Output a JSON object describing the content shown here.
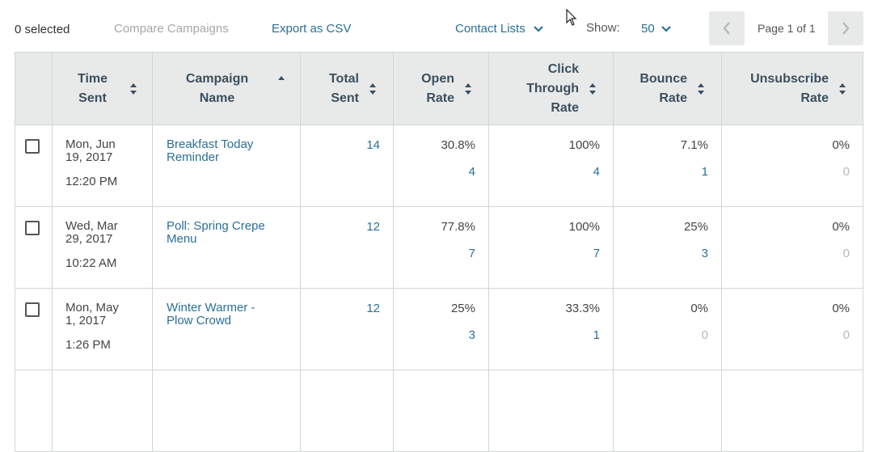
{
  "toolbar": {
    "selected_text": "0 selected",
    "compare_label": "Compare Campaigns",
    "export_label": "Export as CSV",
    "contact_lists_label": "Contact Lists",
    "show_label": "Show:",
    "show_value": "50",
    "page_text": "Page 1 of 1"
  },
  "columns": {
    "time_sent": [
      "Time",
      "Sent"
    ],
    "campaign_name": [
      "Campaign",
      "Name"
    ],
    "total_sent": [
      "Total",
      "Sent"
    ],
    "open_rate": [
      "Open",
      "Rate"
    ],
    "click_through_rate": [
      "Click",
      "Through",
      "Rate"
    ],
    "bounce_rate": [
      "Bounce",
      "Rate"
    ],
    "unsubscribe_rate": [
      "Unsubscribe",
      "Rate"
    ]
  },
  "rows": [
    {
      "date": [
        "Mon, Jun",
        "19, 2017"
      ],
      "time": "12:20 PM",
      "campaign": [
        "Breakfast Today",
        "Reminder"
      ],
      "total_sent": "14",
      "open_rate": "30.8%",
      "open_count": "4",
      "click_rate": "100%",
      "click_count": "4",
      "bounce_rate": "7.1%",
      "bounce_count": "1",
      "unsub_rate": "0%",
      "unsub_count": "0"
    },
    {
      "date": [
        "Wed, Mar",
        "29, 2017"
      ],
      "time": "10:22 AM",
      "campaign": [
        "Poll: Spring Crepe",
        "Menu"
      ],
      "total_sent": "12",
      "open_rate": "77.8%",
      "open_count": "7",
      "click_rate": "100%",
      "click_count": "7",
      "bounce_rate": "25%",
      "bounce_count": "3",
      "unsub_rate": "0%",
      "unsub_count": "0"
    },
    {
      "date": [
        "Mon, May",
        "1, 2017"
      ],
      "time": "1:26 PM",
      "campaign": [
        "Winter Warmer -",
        "Plow Crowd"
      ],
      "total_sent": "12",
      "open_rate": "25%",
      "open_count": "3",
      "click_rate": "33.3%",
      "click_count": "1",
      "bounce_rate": "0%",
      "bounce_count": "0",
      "unsub_rate": "0%",
      "unsub_count": "0"
    }
  ],
  "colors": {
    "link": "#2a6f96",
    "header_bg": "#e8eaea",
    "muted": "#a7a7a7"
  },
  "icons": [
    "chevron-down-icon",
    "chevron-left-icon",
    "chevron-right-icon",
    "sort-icon",
    "sort-asc-icon",
    "mouse-cursor-icon"
  ]
}
